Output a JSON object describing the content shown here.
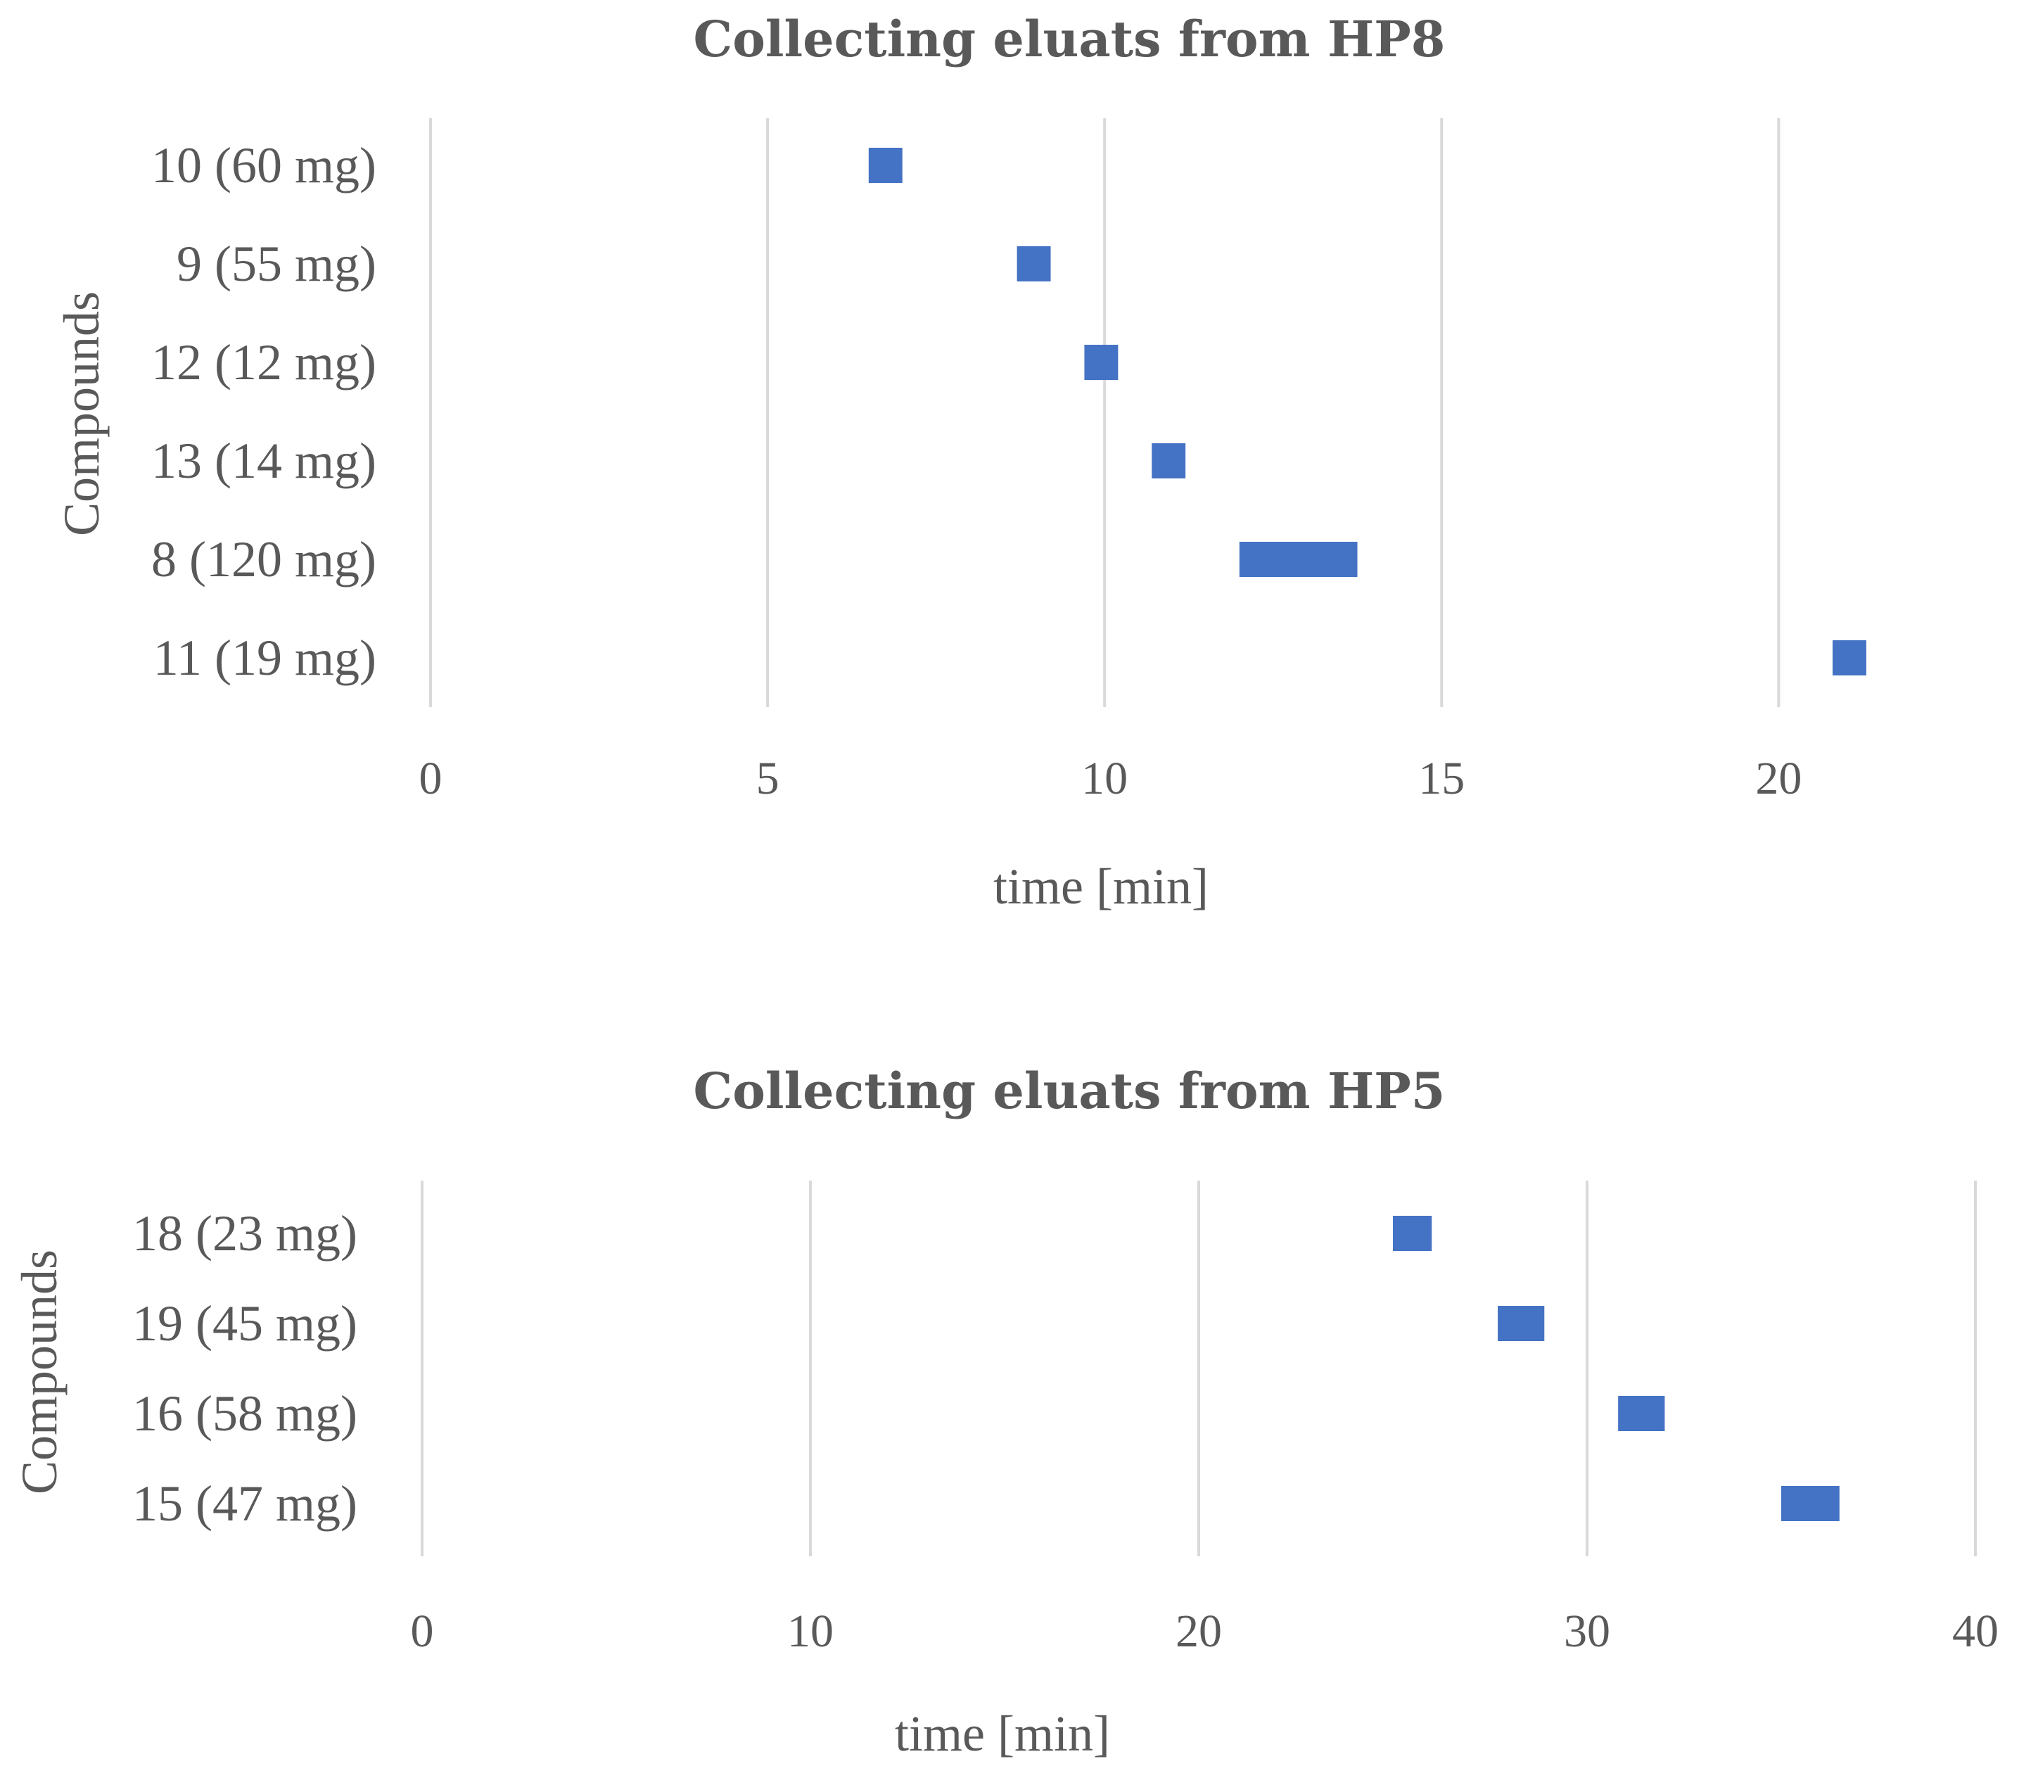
{
  "chart_data": [
    {
      "type": "bar",
      "orientation": "horizontal",
      "style": "floating-range",
      "title": "Collecting eluats from HP8",
      "xlabel": "time [min]",
      "ylabel": "Compounds",
      "xlim": [
        0,
        22
      ],
      "xticks": [
        0,
        5,
        10,
        15,
        20
      ],
      "grid": true,
      "color": "#4472c4",
      "categories": [
        "10 (60 mg)",
        "9 (55 mg)",
        "12 (12 mg)",
        "13 (14 mg)",
        "8 (120 mg)",
        "11 (19 mg)"
      ],
      "ranges": [
        [
          6.5,
          7.0
        ],
        [
          8.7,
          9.2
        ],
        [
          9.7,
          10.2
        ],
        [
          10.7,
          11.2
        ],
        [
          12.0,
          13.75
        ],
        [
          20.8,
          21.3
        ]
      ]
    },
    {
      "type": "bar",
      "orientation": "horizontal",
      "style": "floating-range",
      "title": "Collecting eluats from HP5",
      "xlabel": "time [min]",
      "ylabel": "Compounds",
      "xlim": [
        0,
        40
      ],
      "xticks": [
        0,
        10,
        20,
        30,
        40
      ],
      "grid": true,
      "color": "#4472c4",
      "categories": [
        "18 (23 mg)",
        "19 (45 mg)",
        "16 (58 mg)",
        "15 (47 mg)"
      ],
      "ranges": [
        [
          25.0,
          26.0
        ],
        [
          27.7,
          28.9
        ],
        [
          30.8,
          32.0
        ],
        [
          35.0,
          36.5
        ]
      ]
    }
  ]
}
